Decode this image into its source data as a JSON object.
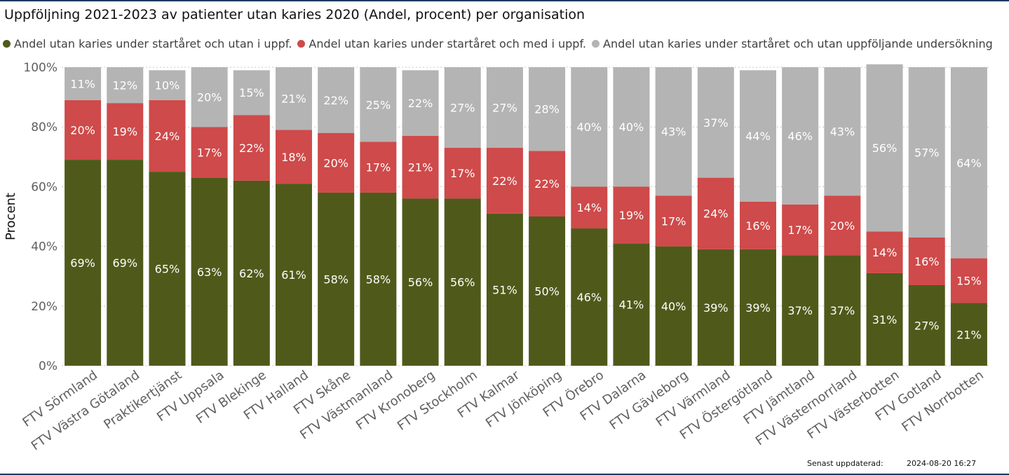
{
  "title": "Uppföljning 2021-2023 av patienter utan karies 2020 (Andel, procent) per organisation",
  "footer": {
    "label": "Senast uppdaterad:",
    "timestamp": "2024-08-20 16:27"
  },
  "colors": {
    "green": "#4f5a1a",
    "red": "#cf4a4a",
    "gray": "#b4b4b4"
  },
  "chart_data": {
    "type": "bar",
    "stacked": true,
    "ylabel": "Procent",
    "ylim": [
      0,
      100
    ],
    "yticks": [
      "0%",
      "20%",
      "40%",
      "60%",
      "80%",
      "100%"
    ],
    "grid": true,
    "legend_position": "top-left",
    "categories": [
      "FTV Sörmland",
      "FTV Västra Götaland",
      "Praktikertjänst",
      "FTV Uppsala",
      "FTV Blekinge",
      "FTV Halland",
      "FTV Skåne",
      "FTV Västmanland",
      "FTV Kronoberg",
      "FTV Stockholm",
      "FTV Kalmar",
      "FTV Jönköping",
      "FTV Örebro",
      "FTV Dalarna",
      "FTV Gävleborg",
      "FTV Värmland",
      "FTV Östergötland",
      "FTV Jämtland",
      "FTV Västernorrland",
      "FTV Västerbotten",
      "FTV Gotland",
      "FTV Norrbotten"
    ],
    "series": [
      {
        "name": "Andel utan karies under startåret och utan i uppf.",
        "color": "#4f5a1a",
        "values": [
          69,
          69,
          65,
          63,
          62,
          61,
          58,
          58,
          56,
          56,
          51,
          50,
          46,
          41,
          40,
          39,
          39,
          37,
          37,
          31,
          27,
          21
        ],
        "labels": [
          "69%",
          "69%",
          "65%",
          "63%",
          "62%",
          "61%",
          "58%",
          "58%",
          "56%",
          "56%",
          "51%",
          "50%",
          "46%",
          "41%",
          "40%",
          "39%",
          "39%",
          "37%",
          "37%",
          "31%",
          "27%",
          "21%"
        ]
      },
      {
        "name": "Andel utan karies under startåret och med i uppf.",
        "color": "#cf4a4a",
        "values": [
          20,
          19,
          24,
          17,
          22,
          18,
          20,
          17,
          21,
          17,
          22,
          22,
          14,
          19,
          17,
          24,
          16,
          17,
          20,
          14,
          16,
          15
        ],
        "labels": [
          "20%",
          "19%",
          "24%",
          "17%",
          "22%",
          "18%",
          "20%",
          "17%",
          "21%",
          "17%",
          "22%",
          "22%",
          "14%",
          "19%",
          "17%",
          "24%",
          "16%",
          "17%",
          "20%",
          "14%",
          "16%",
          "15%"
        ]
      },
      {
        "name": "Andel utan karies under startåret och utan uppföljande undersökning",
        "color": "#b4b4b4",
        "values": [
          11,
          12,
          10,
          20,
          15,
          21,
          22,
          25,
          22,
          27,
          27,
          28,
          40,
          40,
          43,
          37,
          44,
          46,
          43,
          56,
          57,
          64
        ],
        "labels": [
          "11%",
          "12%",
          "10%",
          "20%",
          "15%",
          "21%",
          "22%",
          "25%",
          "22%",
          "27%",
          "27%",
          "28%",
          "40%",
          "40%",
          "43%",
          "37%",
          "44%",
          "46%",
          "43%",
          "56%",
          "57%",
          "64%"
        ]
      }
    ]
  }
}
